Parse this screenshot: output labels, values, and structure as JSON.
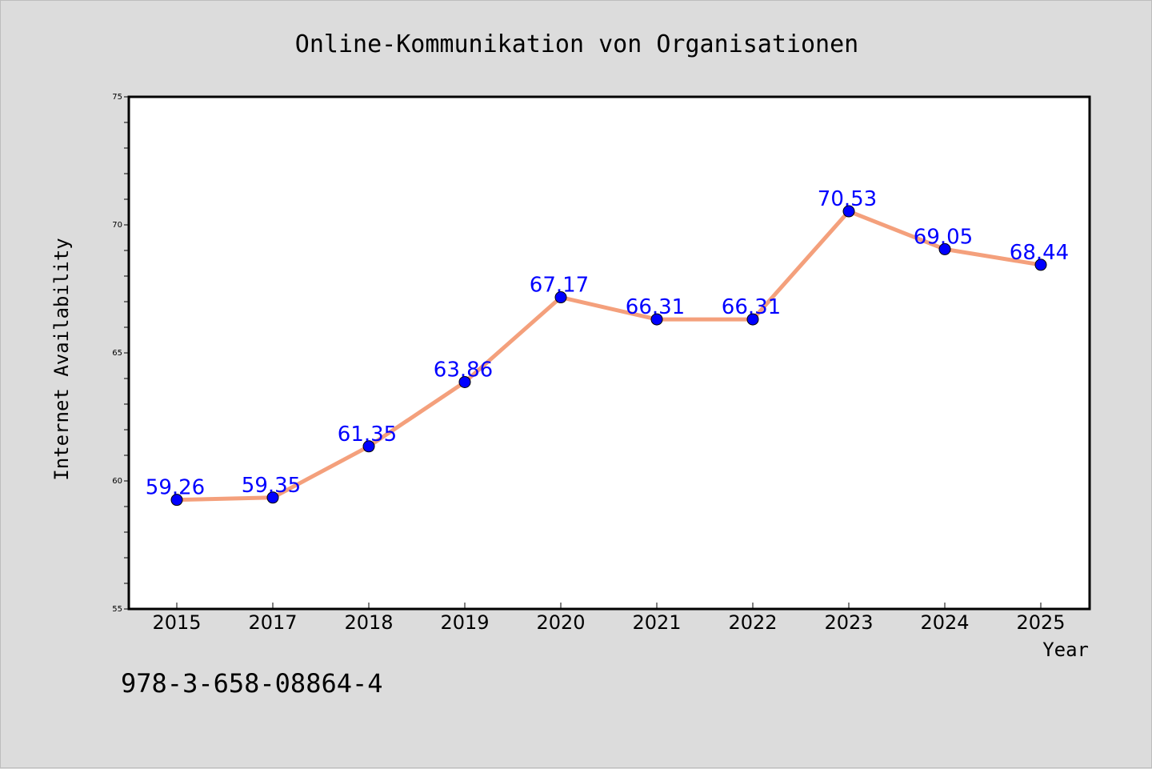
{
  "chart_data": {
    "type": "line",
    "title": "Online-Kommunikation von Organisationen",
    "xlabel": "Year",
    "ylabel": "Internet Availability",
    "categories": [
      "2015",
      "2017",
      "2018",
      "2019",
      "2020",
      "2021",
      "2022",
      "2023",
      "2024",
      "2025"
    ],
    "values": [
      59.26,
      59.35,
      61.35,
      63.86,
      67.17,
      66.31,
      66.31,
      70.53,
      69.05,
      68.44
    ],
    "data_labels": [
      "59.26",
      "59.35",
      "61.35",
      "63.86",
      "67.17",
      "66.31",
      "66.31",
      "70.53",
      "69.05",
      "68.44"
    ],
    "ylim": [
      55,
      75
    ],
    "yticks": [
      "55",
      "60",
      "65",
      "70",
      "75"
    ],
    "grid": false,
    "colors": {
      "line": "#f4a07c",
      "marker": "#0000ff",
      "data_label": "#0000ff",
      "background": "#dcdcdc",
      "plot_background": "#ffffff"
    }
  },
  "footnote": "978-3-658-08864-4"
}
